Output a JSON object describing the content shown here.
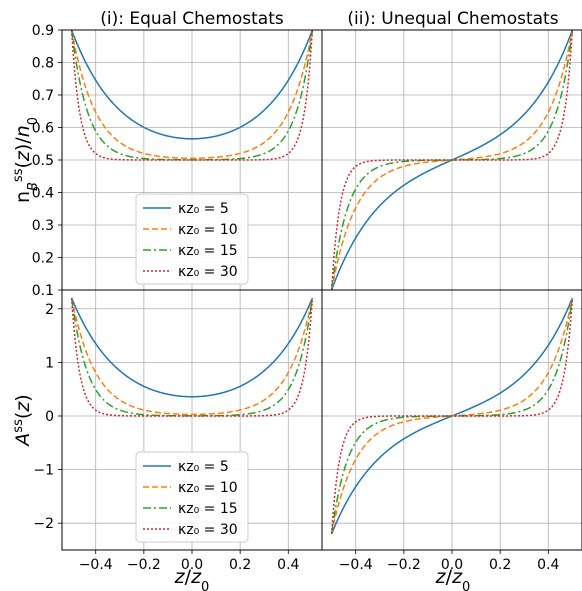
{
  "chart_data": {
    "type": "line",
    "layout": "2x2 grid, shared x axis per column, shared y axis per row",
    "panel_titles": [
      "(i): Equal Chemostats",
      "(ii): Unequal Chemostats"
    ],
    "xlabel": "z/z_0",
    "xlim": [
      -0.54,
      0.54
    ],
    "xticks": [
      -0.4,
      -0.2,
      0.0,
      0.2,
      0.4
    ],
    "xtick_labels": [
      "−0.4",
      "−0.2",
      "0.0",
      "0.2",
      "0.4"
    ],
    "grid": true,
    "rows": [
      {
        "ylabel": "n_B^ss(z)/n_0",
        "ylim": [
          0.1,
          0.9
        ],
        "yticks": [
          0.1,
          0.2,
          0.3,
          0.4,
          0.5,
          0.6,
          0.7,
          0.8,
          0.9
        ],
        "ytick_labels": [
          "0.1",
          "0.2",
          "0.3",
          "0.4",
          "0.5",
          "0.6",
          "0.7",
          "0.8",
          "0.9"
        ]
      },
      {
        "ylabel": "A^ss(z)",
        "ylim": [
          -2.5,
          2.35
        ],
        "yticks": [
          -2,
          -1,
          0,
          1,
          2
        ],
        "ytick_labels": [
          "−2",
          "−1",
          "0",
          "1",
          "2"
        ]
      }
    ],
    "legend_placement": "lower-center",
    "series": [
      {
        "name": "κz₀ = 5",
        "kappa_z0": 5,
        "color": "#1f77b4",
        "linestyle": "solid"
      },
      {
        "name": "κz₀ = 10",
        "kappa_z0": 10,
        "color": "#ff7f0e",
        "linestyle": "dashed"
      },
      {
        "name": "κz₀ = 15",
        "kappa_z0": 15,
        "color": "#2ca02c",
        "linestyle": "dashdot"
      },
      {
        "name": "κz₀ = 30",
        "kappa_z0": 30,
        "color": "#d62728",
        "linestyle": "dotted"
      }
    ],
    "model": {
      "x_range": [
        -0.5,
        0.5
      ],
      "density": {
        "baseline": 0.5,
        "boundary_value_max": 0.9,
        "boundary_value_min": 0.1
      },
      "affinity": {
        "baseline": 0,
        "boundary_value_max": 2.2,
        "boundary_value_min": -2.2
      }
    }
  }
}
